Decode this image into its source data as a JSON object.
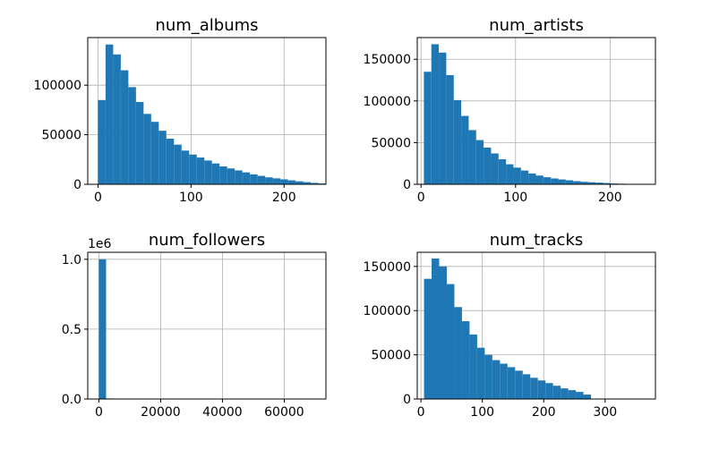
{
  "chart_data": [
    {
      "type": "bar",
      "title": "num_albums",
      "xlabel": "",
      "ylabel": "",
      "xlim": [
        -11,
        245
      ],
      "ylim": [
        0,
        148000
      ],
      "bins_range": [
        0,
        245
      ],
      "values": [
        85000,
        141000,
        131000,
        115000,
        98000,
        83000,
        71000,
        63000,
        54000,
        46000,
        40000,
        34000,
        30000,
        27000,
        24000,
        21000,
        18000,
        16000,
        14000,
        12000,
        10000,
        8500,
        7000,
        6000,
        5000,
        4000,
        3000,
        2200,
        1400,
        800
      ],
      "xticks": [
        0,
        100,
        200
      ],
      "yticks": [
        0,
        50000,
        100000
      ],
      "xticklabels": [
        "0",
        "100",
        "200"
      ],
      "yticklabels": [
        "0",
        "50000",
        "100000"
      ],
      "grid": true,
      "color": "#1f77b4"
    },
    {
      "type": "bar",
      "title": "num_artists",
      "xlabel": "",
      "ylabel": "",
      "xlim": [
        -4,
        248
      ],
      "ylim": [
        0,
        176000
      ],
      "bins_range": [
        3,
        240
      ],
      "values": [
        135000,
        168000,
        158000,
        131000,
        101000,
        82000,
        65000,
        53000,
        44000,
        37000,
        30000,
        24000,
        20000,
        16500,
        13000,
        10500,
        8500,
        7000,
        5800,
        4800,
        3800,
        3000,
        2500,
        2000,
        1500,
        1000,
        700,
        500,
        300,
        150
      ],
      "xticks": [
        0,
        100,
        200
      ],
      "yticks": [
        0,
        50000,
        100000,
        150000
      ],
      "xticklabels": [
        "0",
        "100",
        "200"
      ],
      "yticklabels": [
        "0",
        "50000",
        "100000",
        "150000"
      ],
      "grid": true,
      "color": "#1f77b4"
    },
    {
      "type": "bar",
      "title": "num_followers",
      "xlabel": "",
      "ylabel": "",
      "offset_text": "1e6",
      "xlim": [
        -3600,
        73500
      ],
      "ylim": [
        0,
        1.05
      ],
      "bins_range": [
        0,
        70000
      ],
      "values": [
        1.0,
        0.004,
        0.0008,
        0.0003,
        0.0001,
        5e-05,
        3e-05,
        2e-05,
        1e-05,
        1e-05,
        0,
        0,
        0,
        0,
        0,
        0,
        0,
        0,
        0,
        0,
        0,
        0,
        0,
        0,
        0,
        0,
        0,
        0,
        0,
        1e-05
      ],
      "xticks": [
        0,
        20000,
        40000,
        60000
      ],
      "yticks": [
        0,
        0.5,
        1.0
      ],
      "xticklabels": [
        "0",
        "20000",
        "40000",
        "60000"
      ],
      "yticklabels": [
        "0.0",
        "0.5",
        "1.0"
      ],
      "grid": true,
      "color": "#1f77b4"
    },
    {
      "type": "bar",
      "title": "num_tracks",
      "xlabel": "",
      "ylabel": "",
      "xlim": [
        -6,
        382
      ],
      "ylim": [
        0,
        166000
      ],
      "bins_range": [
        5,
        376
      ],
      "values": [
        136000,
        159000,
        150000,
        130000,
        104000,
        88000,
        73000,
        58000,
        50000,
        44000,
        40000,
        36000,
        32000,
        28000,
        24000,
        21000,
        18000,
        15000,
        12000,
        10000,
        8000,
        5000,
        400,
        0,
        0,
        0,
        0,
        0,
        0,
        0
      ],
      "xticks": [
        0,
        100,
        200,
        300
      ],
      "yticks": [
        0,
        50000,
        100000,
        150000
      ],
      "xticklabels": [
        "0",
        "100",
        "200",
        "300"
      ],
      "yticklabels": [
        "0",
        "50000",
        "100000",
        "150000"
      ],
      "grid": true,
      "color": "#1f77b4"
    }
  ]
}
